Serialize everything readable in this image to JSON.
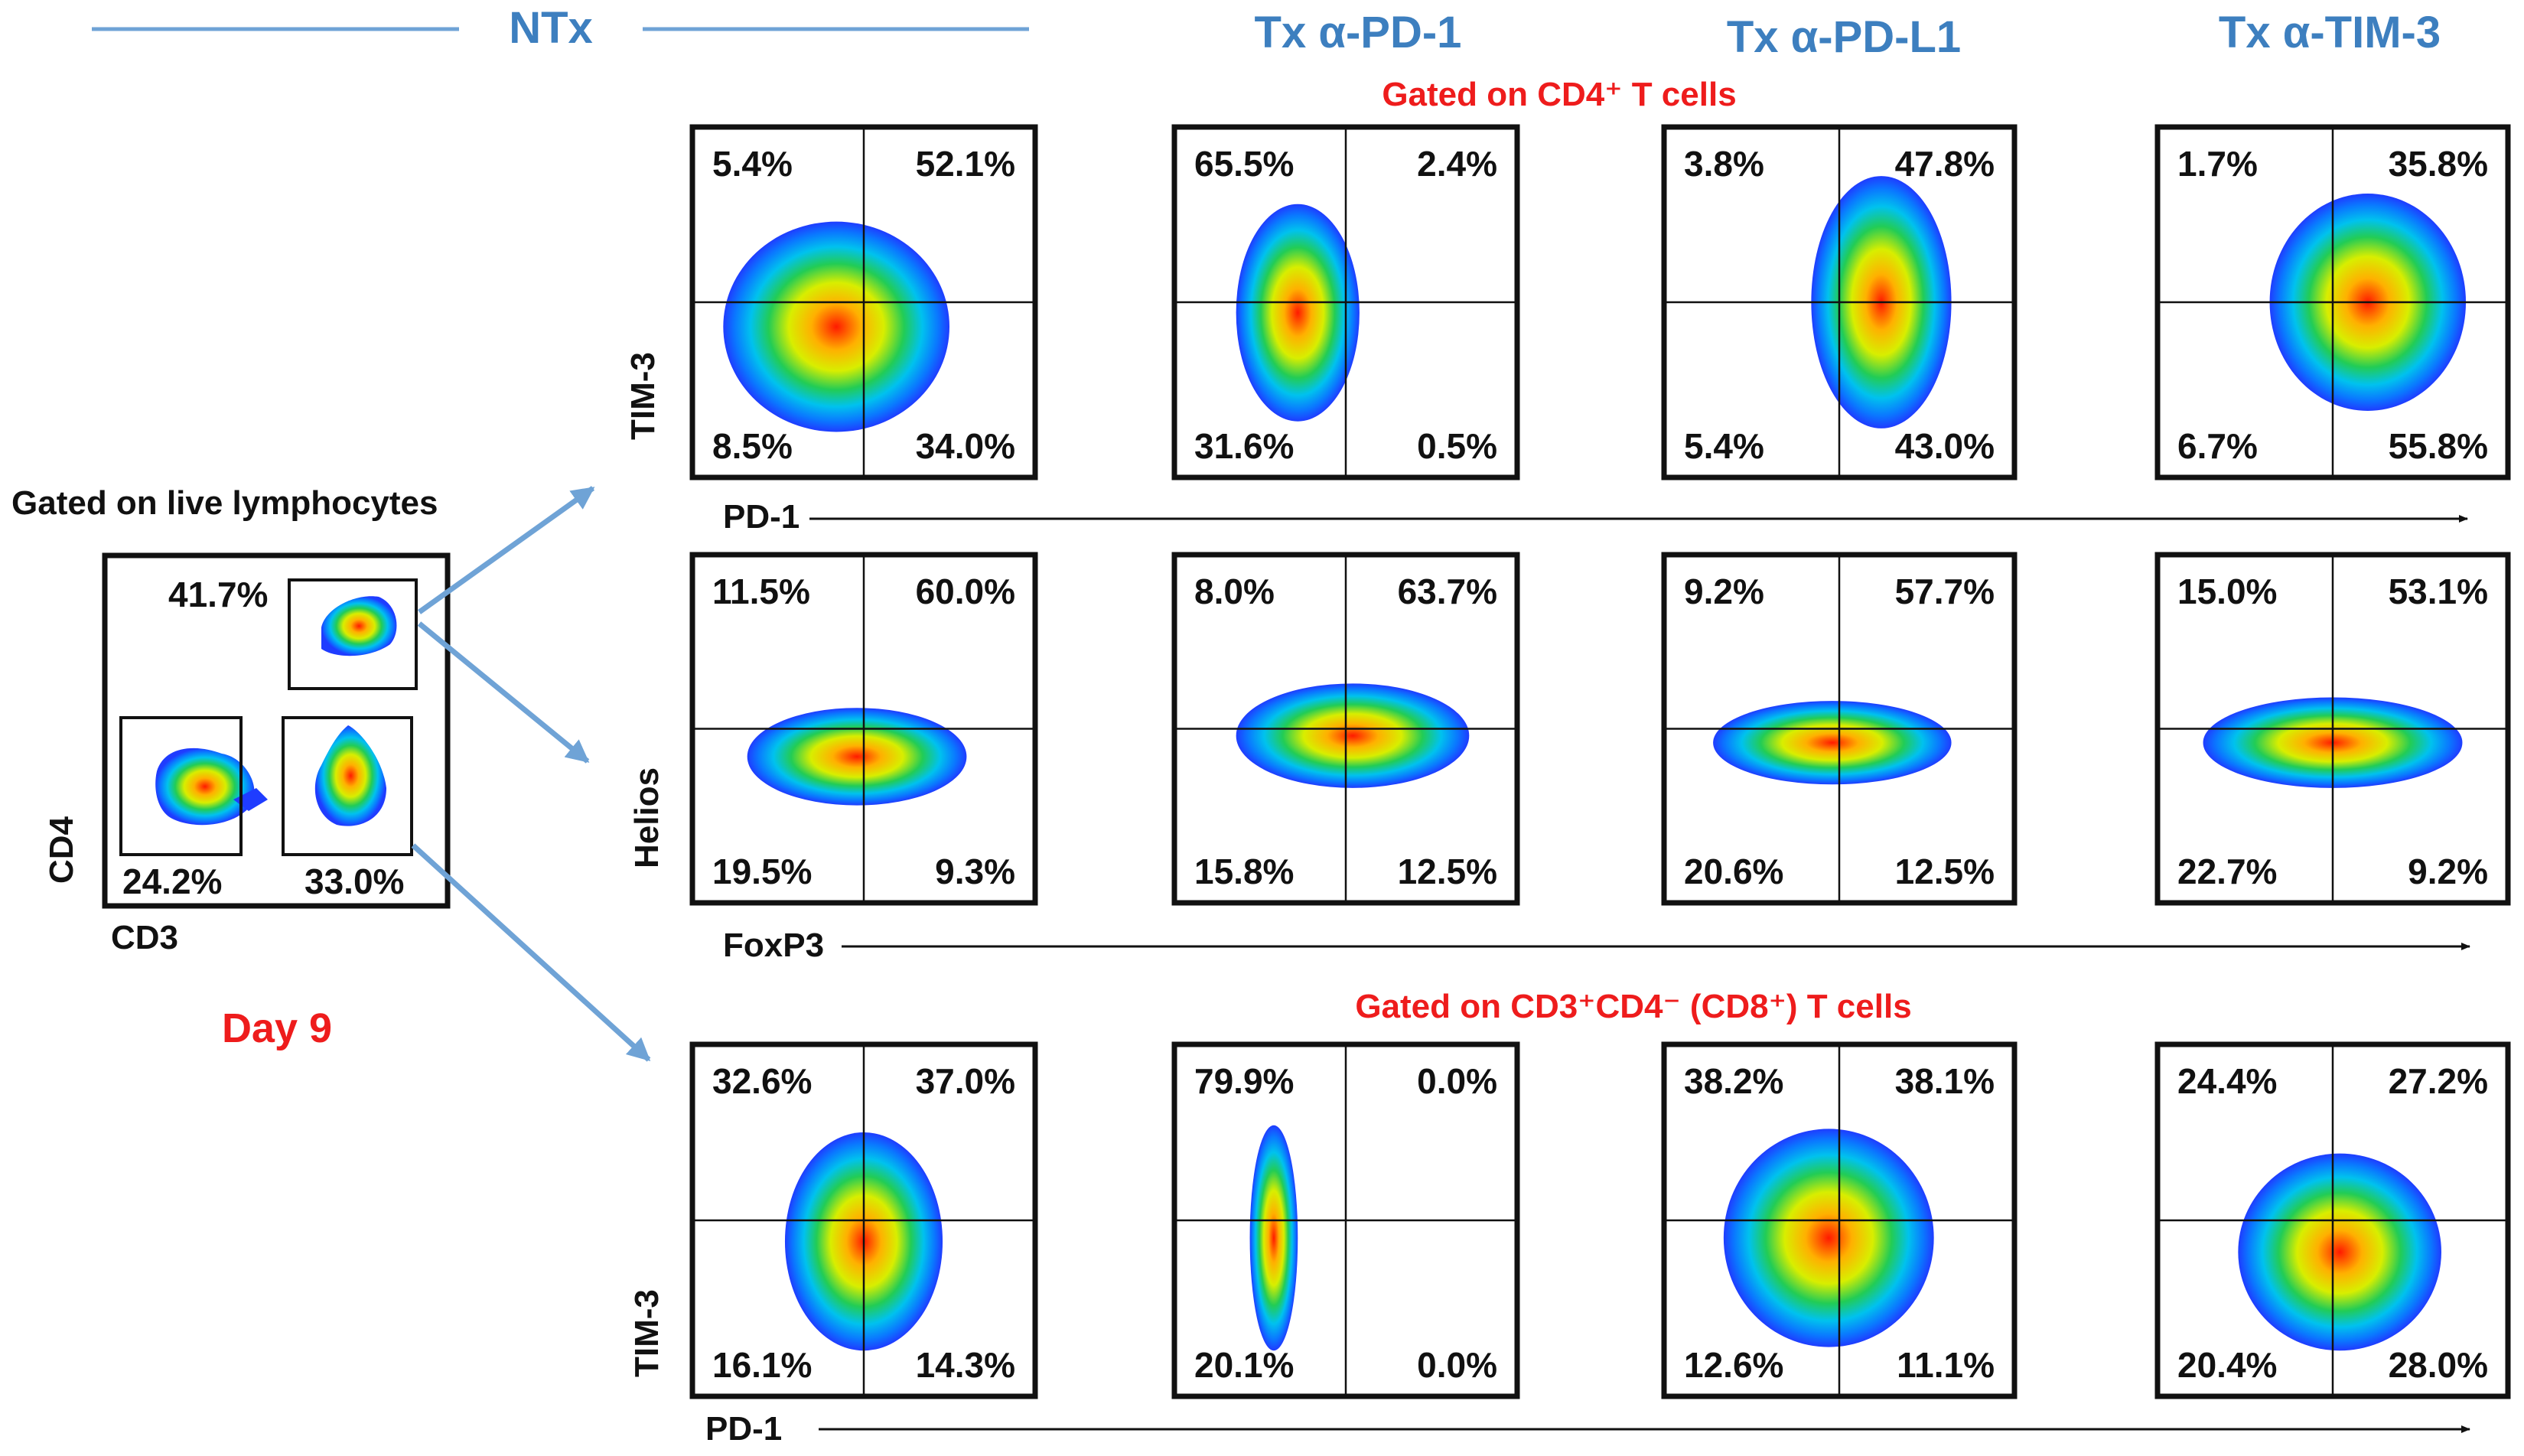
{
  "headers": {
    "ntx": "NTx",
    "pd1": "Tx α-PD-1",
    "pdl1": "Tx α-PD-L1",
    "tim3": "Tx α-TIM-3"
  },
  "gating": {
    "cd4_title": "Gated on CD4⁺ T cells",
    "cd8_title": "Gated on CD3⁺CD4⁻ (CD8⁺) T cells",
    "live_title": "Gated on live lymphocytes",
    "day": "Day 9"
  },
  "colors": {
    "header": "#3d7fbf",
    "gate_text": "#ee1c1c",
    "arrow": "#6fa3d6",
    "density_low": "#1f3cff",
    "density_high": "#ff1a00"
  },
  "chart_data": [
    {
      "type": "scatter",
      "title": "Gated on live lymphocytes",
      "xlabel": "CD3",
      "ylabel": "CD4",
      "gates": [
        {
          "name": "CD4+ T cells",
          "value_pct": 41.7
        },
        {
          "name": "CD3- cells",
          "value_pct": 24.2
        },
        {
          "name": "CD3+CD4- cells",
          "value_pct": 33.0
        }
      ]
    },
    {
      "type": "scatter",
      "title": "Gated on CD4+ T cells (TIM-3 vs PD-1)",
      "xlabel": "PD-1",
      "ylabel": "TIM-3",
      "columns": [
        "NTx",
        "Tx α-PD-1",
        "Tx α-PD-L1",
        "Tx α-TIM-3"
      ],
      "quadrants": [
        {
          "ul": "5.4%",
          "ur": "52.1%",
          "ll": "8.5%",
          "lr": "34.0%"
        },
        {
          "ul": "65.5%",
          "ur": "2.4%",
          "ll": "31.6%",
          "lr": "0.5%"
        },
        {
          "ul": "3.8%",
          "ur": "47.8%",
          "ll": "5.4%",
          "lr": "43.0%"
        },
        {
          "ul": "1.7%",
          "ur": "35.8%",
          "ll": "6.7%",
          "lr": "55.8%"
        }
      ]
    },
    {
      "type": "scatter",
      "title": "Gated on CD4+ T cells (Helios vs FoxP3)",
      "xlabel": "FoxP3",
      "ylabel": "Helios",
      "columns": [
        "NTx",
        "Tx α-PD-1",
        "Tx α-PD-L1",
        "Tx α-TIM-3"
      ],
      "quadrants": [
        {
          "ul": "11.5%",
          "ur": "60.0%",
          "ll": "19.5%",
          "lr": "9.3%"
        },
        {
          "ul": "8.0%",
          "ur": "63.7%",
          "ll": "15.8%",
          "lr": "12.5%"
        },
        {
          "ul": "9.2%",
          "ur": "57.7%",
          "ll": "20.6%",
          "lr": "12.5%"
        },
        {
          "ul": "15.0%",
          "ur": "53.1%",
          "ll": "22.7%",
          "lr": "9.2%"
        }
      ]
    },
    {
      "type": "scatter",
      "title": "Gated on CD3+CD4- (CD8+) T cells (TIM-3 vs PD-1)",
      "xlabel": "PD-1",
      "ylabel": "TIM-3",
      "columns": [
        "NTx",
        "Tx α-PD-1",
        "Tx α-PD-L1",
        "Tx α-TIM-3"
      ],
      "quadrants": [
        {
          "ul": "32.6%",
          "ur": "37.0%",
          "ll": "16.1%",
          "lr": "14.3%"
        },
        {
          "ul": "79.9%",
          "ur": "0.0%",
          "ll": "20.1%",
          "lr": "0.0%"
        },
        {
          "ul": "38.2%",
          "ur": "38.1%",
          "ll": "12.6%",
          "lr": "11.1%"
        },
        {
          "ul": "24.4%",
          "ur": "27.2%",
          "ll": "20.4%",
          "lr": "28.0%"
        }
      ]
    }
  ]
}
